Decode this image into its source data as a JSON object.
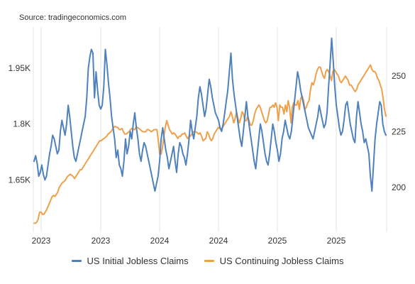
{
  "source": "Source: tradingeconomics.com",
  "chart_data": {
    "type": "line",
    "title": "",
    "xlabel": "",
    "grid": "vertical",
    "legend": "bottom",
    "x_ticks": [
      "2023",
      "2023",
      "2024",
      "2024",
      "2025",
      "2025"
    ],
    "y_left": {
      "ticks": [
        "1.65K",
        "1.8K",
        "1.95K"
      ],
      "tick_values": [
        1650,
        1800,
        1950
      ],
      "range": [
        1510,
        2060
      ]
    },
    "y_right": {
      "ticks": [
        "200",
        "225",
        "250"
      ],
      "tick_values": [
        200,
        225,
        250
      ],
      "range": [
        180,
        272
      ]
    },
    "series": [
      {
        "name": "US Initial Jobless Claims",
        "color": "#4f81bd",
        "axis": "left",
        "values": [
          1700,
          1715,
          1695,
          1660,
          1670,
          1690,
          1665,
          1650,
          1660,
          1690,
          1720,
          1740,
          1770,
          1760,
          1740,
          1720,
          1730,
          1780,
          1810,
          1790,
          1770,
          1800,
          1850,
          1820,
          1780,
          1740,
          1710,
          1700,
          1720,
          1740,
          1760,
          1780,
          1800,
          1820,
          1870,
          1950,
          1980,
          2000,
          1990,
          1870,
          1940,
          1890,
          1850,
          1840,
          1850,
          1900,
          2000,
          1960,
          1910,
          1870,
          1820,
          1790,
          1760,
          1710,
          1730,
          1690,
          1680,
          1660,
          1700,
          1760,
          1720,
          1740,
          1780,
          1760,
          1800,
          1830,
          1790,
          1760,
          1720,
          1700,
          1730,
          1750,
          1740,
          1720,
          1700,
          1680,
          1660,
          1640,
          1620,
          1640,
          1660,
          1700,
          1760,
          1790,
          1760,
          1730,
          1710,
          1680,
          1700,
          1720,
          1740,
          1700,
          1670,
          1720,
          1750,
          1740,
          1720,
          1710,
          1690,
          1720,
          1760,
          1810,
          1780,
          1760,
          1790,
          1820,
          1870,
          1900,
          1880,
          1850,
          1820,
          1840,
          1880,
          1920,
          1900,
          1870,
          1850,
          1830,
          1820,
          1810,
          1790,
          1780,
          1800,
          1830,
          1860,
          1890,
          1940,
          1990,
          1920,
          1880,
          1850,
          1820,
          1790,
          1760,
          1740,
          1780,
          1820,
          1860,
          1820,
          1790,
          1760,
          1730,
          1700,
          1680,
          1720,
          1760,
          1800,
          1780,
          1750,
          1720,
          1700,
          1690,
          1720,
          1760,
          1800,
          1780,
          1750,
          1730,
          1700,
          1720,
          1760,
          1780,
          1810,
          1790,
          1770,
          1760,
          1780,
          1820,
          1860,
          1900,
          1940,
          1920,
          1890,
          1870,
          1850,
          1830,
          1810,
          1790,
          1780,
          1770,
          1760,
          1780,
          1800,
          1820,
          1850,
          1830,
          1810,
          1790,
          1800,
          1830,
          1900,
          1960,
          2030,
          1970,
          1900,
          1850,
          1820,
          1790,
          1770,
          1780,
          1810,
          1850,
          1860,
          1830,
          1800,
          1780,
          1760,
          1750,
          1820,
          1860,
          1830,
          1800,
          1780,
          1750,
          1760,
          1740,
          1720,
          1660,
          1620,
          1690,
          1760,
          1800,
          1830,
          1860,
          1850,
          1800,
          1780,
          1770
        ]
      },
      {
        "name": "US Continuing Jobless Claims",
        "color": "#f0a04b",
        "axis": "right",
        "values": [
          184,
          184,
          184.5,
          186,
          189,
          189,
          188,
          188,
          189,
          190,
          191.5,
          193,
          194.5,
          196,
          196.5,
          196,
          197,
          198,
          200,
          201,
          202,
          202.5,
          203,
          204,
          205,
          205.5,
          206,
          205.5,
          205,
          204,
          205,
          206,
          207,
          208,
          208,
          209,
          210,
          211,
          212,
          213,
          214,
          215,
          216,
          217,
          218,
          219,
          220,
          221,
          221,
          221.5,
          222,
          222.5,
          223,
          224,
          224.5,
          225,
          226,
          227,
          227.5,
          227,
          227,
          226,
          226,
          226.5,
          225,
          224,
          224,
          224.5,
          225,
          226,
          226.5,
          226,
          226,
          227,
          227,
          226.5,
          226,
          225.5,
          225,
          225,
          225,
          226,
          226,
          225.5,
          225,
          225.5,
          226,
          226,
          226,
          221,
          215,
          215,
          218,
          223,
          227,
          230,
          228,
          226,
          225,
          224,
          224.5,
          224,
          223,
          222,
          223,
          223,
          224,
          224,
          224.5,
          223,
          222,
          223,
          223,
          224,
          225,
          225,
          225,
          224.5,
          224,
          224.5,
          223,
          221,
          221.5,
          222,
          225,
          224,
          222,
          221,
          222,
          224,
          225,
          226,
          227,
          226.5,
          226,
          227,
          228,
          229,
          230,
          231,
          232,
          234,
          232,
          229,
          231,
          234,
          231,
          229,
          231,
          234,
          233,
          230,
          230,
          232,
          230,
          228,
          228,
          230,
          233,
          235,
          236,
          237,
          236,
          234,
          232,
          230,
          229,
          230,
          233,
          236,
          236,
          237,
          236,
          238,
          236,
          230,
          237,
          236,
          236,
          233,
          237,
          234,
          239,
          236,
          229,
          236,
          238,
          237,
          237,
          239,
          235,
          240,
          241,
          239,
          235,
          236,
          238,
          239,
          244,
          247,
          246,
          248,
          251,
          253,
          254,
          254,
          252,
          250,
          249,
          252,
          253,
          252,
          250,
          248,
          252,
          253,
          252,
          251,
          250,
          248,
          247,
          248,
          249,
          250,
          249,
          248,
          246,
          246,
          245,
          244,
          243,
          244,
          246,
          247,
          248,
          249,
          250,
          251,
          252,
          253,
          254,
          255,
          253,
          252,
          252,
          251,
          249,
          248,
          246,
          244,
          240,
          235,
          232
        ]
      }
    ]
  }
}
